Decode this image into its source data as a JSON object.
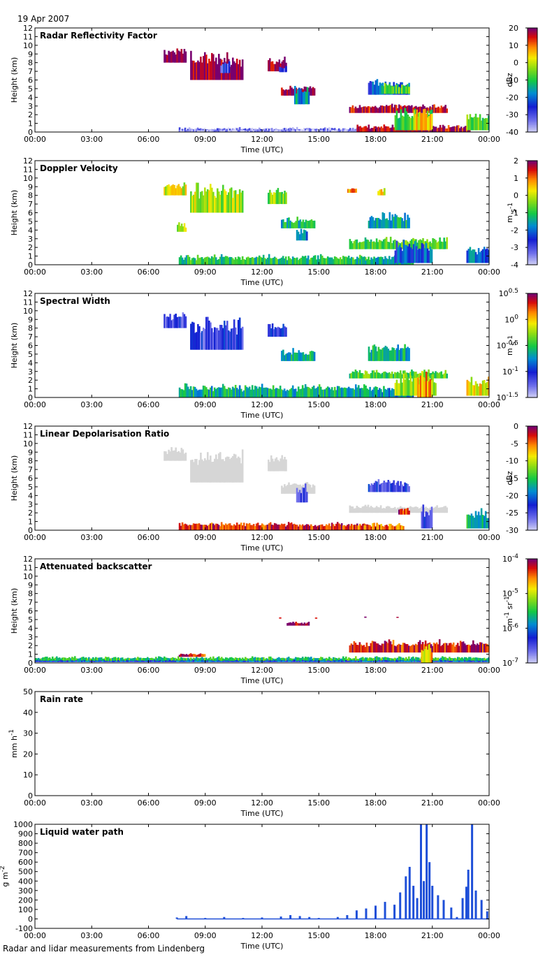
{
  "date_label": "19 Apr 2007",
  "footer_text": "Radar and lidar measurements from Lindenberg",
  "x_axis": {
    "label": "Time (UTC)",
    "ticks": [
      "00:00",
      "03:00",
      "06:00",
      "09:00",
      "12:00",
      "15:00",
      "18:00",
      "21:00",
      "00:00"
    ],
    "range_hours": [
      0,
      24
    ]
  },
  "chart_data": [
    {
      "type": "heatmap",
      "title": "Radar Reflectivity Factor",
      "ylabel": "Height (km)",
      "ylim": [
        0,
        12
      ],
      "yticks": [
        0,
        1,
        2,
        3,
        4,
        5,
        6,
        7,
        8,
        9,
        10,
        11,
        12
      ],
      "colorbar": {
        "unit": "dBz",
        "ticks": [
          "20",
          "10",
          "0",
          "-10",
          "-20",
          "-30",
          "-40"
        ],
        "scheme": "standard"
      },
      "features": [
        {
          "t0": 7.6,
          "t1": 17.5,
          "h0": 0.0,
          "h1": 0.6,
          "v": 0.1
        },
        {
          "t0": 7.6,
          "t1": 20.0,
          "h0": 0.0,
          "h1": 0.3,
          "v": 0.05
        },
        {
          "t0": 17.0,
          "t1": 23.0,
          "h0": 0.0,
          "h1": 0.9,
          "v": 0.95
        },
        {
          "t0": 6.8,
          "t1": 8.0,
          "h0": 8.0,
          "h1": 9.8,
          "v": 1.0
        },
        {
          "t0": 8.2,
          "t1": 11.0,
          "h0": 6.0,
          "h1": 9.5,
          "v": 1.0
        },
        {
          "t0": 9.8,
          "t1": 10.3,
          "h0": 6.8,
          "h1": 8.5,
          "v": 0.2
        },
        {
          "t0": 12.3,
          "t1": 13.3,
          "h0": 7.0,
          "h1": 9.0,
          "v": 1.0
        },
        {
          "t0": 12.9,
          "t1": 13.3,
          "h0": 6.9,
          "h1": 7.7,
          "v": 0.2
        },
        {
          "t0": 13.0,
          "t1": 14.8,
          "h0": 4.2,
          "h1": 5.4,
          "v": 1.0
        },
        {
          "t0": 13.7,
          "t1": 14.5,
          "h0": 3.2,
          "h1": 5.8,
          "v": 0.4
        },
        {
          "t0": 17.6,
          "t1": 19.8,
          "h0": 4.3,
          "h1": 6.2,
          "v": 0.3
        },
        {
          "t0": 18.3,
          "t1": 19.8,
          "h0": 4.4,
          "h1": 5.9,
          "v": 0.55
        },
        {
          "t0": 16.6,
          "t1": 21.8,
          "h0": 2.2,
          "h1": 3.3,
          "v": 0.95
        },
        {
          "t0": 19.0,
          "t1": 21.0,
          "h0": 0.2,
          "h1": 3.2,
          "v": 0.55
        },
        {
          "t0": 20.0,
          "t1": 21.0,
          "h0": 0.2,
          "h1": 3.4,
          "v": 0.75
        },
        {
          "t0": 22.8,
          "t1": 24.0,
          "h0": 0.2,
          "h1": 2.6,
          "v": 0.55
        }
      ]
    },
    {
      "type": "heatmap",
      "title": "Doppler Velocity",
      "ylabel": "Height (km)",
      "ylim": [
        0,
        12
      ],
      "yticks": [
        0,
        1,
        2,
        3,
        4,
        5,
        6,
        7,
        8,
        9,
        10,
        11,
        12
      ],
      "colorbar": {
        "unit": "m s-1",
        "ticks": [
          "2",
          "1",
          "0",
          "-1",
          "-2",
          "-3",
          "-4"
        ],
        "scheme": "standard"
      },
      "features": [
        {
          "t0": 7.6,
          "t1": 17.5,
          "h0": 0.0,
          "h1": 1.3,
          "v": 0.5
        },
        {
          "t0": 17.0,
          "t1": 20.0,
          "h0": 0.0,
          "h1": 1.2,
          "v": 0.45
        },
        {
          "t0": 6.8,
          "t1": 8.0,
          "h0": 8.0,
          "h1": 9.8,
          "v": 0.68
        },
        {
          "t0": 8.2,
          "t1": 11.0,
          "h0": 6.0,
          "h1": 9.7,
          "v": 0.65
        },
        {
          "t0": 7.5,
          "t1": 8.0,
          "h0": 3.8,
          "h1": 5.0,
          "v": 0.62
        },
        {
          "t0": 12.3,
          "t1": 13.3,
          "h0": 7.0,
          "h1": 9.0,
          "v": 0.6
        },
        {
          "t0": 13.0,
          "t1": 14.8,
          "h0": 4.2,
          "h1": 5.6,
          "v": 0.45
        },
        {
          "t0": 13.8,
          "t1": 14.4,
          "h0": 2.8,
          "h1": 4.3,
          "v": 0.35
        },
        {
          "t0": 17.6,
          "t1": 19.8,
          "h0": 4.2,
          "h1": 6.2,
          "v": 0.45
        },
        {
          "t0": 16.6,
          "t1": 21.8,
          "h0": 1.8,
          "h1": 3.3,
          "v": 0.55
        },
        {
          "t0": 19.0,
          "t1": 21.0,
          "h0": 0.2,
          "h1": 3.2,
          "v": 0.3
        },
        {
          "t0": 22.8,
          "t1": 24.0,
          "h0": 0.2,
          "h1": 2.6,
          "v": 0.35
        },
        {
          "t0": 16.5,
          "t1": 17.0,
          "h0": 8.3,
          "h1": 9.0,
          "v": 0.8
        },
        {
          "t0": 18.1,
          "t1": 18.5,
          "h0": 8.0,
          "h1": 9.0,
          "v": 0.7
        }
      ]
    },
    {
      "type": "heatmap",
      "title": "Spectral Width",
      "ylabel": "Height (km)",
      "ylim": [
        0,
        12
      ],
      "yticks": [
        0,
        1,
        2,
        3,
        4,
        5,
        6,
        7,
        8,
        9,
        10,
        11,
        12
      ],
      "colorbar": {
        "unit": "m s-1",
        "ticks": [
          "10^0.5",
          "10^0",
          "10^-0.5",
          "10^-1",
          "10^-1.5"
        ],
        "scheme": "standard"
      },
      "features": [
        {
          "t0": 7.6,
          "t1": 17.5,
          "h0": 0.0,
          "h1": 1.7,
          "v": 0.45
        },
        {
          "t0": 17.0,
          "t1": 20.0,
          "h0": 0.0,
          "h1": 1.5,
          "v": 0.4
        },
        {
          "t0": 6.8,
          "t1": 8.0,
          "h0": 8.0,
          "h1": 10.0,
          "v": 0.2
        },
        {
          "t0": 8.2,
          "t1": 11.0,
          "h0": 5.5,
          "h1": 9.8,
          "v": 0.2
        },
        {
          "t0": 12.3,
          "t1": 13.3,
          "h0": 7.0,
          "h1": 9.0,
          "v": 0.2
        },
        {
          "t0": 13.0,
          "t1": 14.8,
          "h0": 4.2,
          "h1": 5.8,
          "v": 0.45
        },
        {
          "t0": 17.6,
          "t1": 19.8,
          "h0": 4.2,
          "h1": 6.5,
          "v": 0.45
        },
        {
          "t0": 16.6,
          "t1": 21.8,
          "h0": 2.2,
          "h1": 3.3,
          "v": 0.55
        },
        {
          "t0": 19.0,
          "t1": 21.2,
          "h0": 0.2,
          "h1": 3.3,
          "v": 0.65
        },
        {
          "t0": 20.2,
          "t1": 21.0,
          "h0": 0.0,
          "h1": 3.2,
          "v": 0.78
        },
        {
          "t0": 22.8,
          "t1": 24.0,
          "h0": 0.2,
          "h1": 2.6,
          "v": 0.72
        }
      ]
    },
    {
      "type": "heatmap",
      "title": "Linear Depolarisation Ratio",
      "ylabel": "Height (km)",
      "ylim": [
        0,
        12
      ],
      "yticks": [
        0,
        1,
        2,
        3,
        4,
        5,
        6,
        7,
        8,
        9,
        10,
        11,
        12
      ],
      "colorbar": {
        "unit": "dBz",
        "ticks": [
          "0",
          "-5",
          "-10",
          "-15",
          "-20",
          "-25",
          "-30"
        ],
        "scheme": "standard"
      },
      "features": [
        {
          "t0": 7.6,
          "t1": 17.5,
          "h0": 0.0,
          "h1": 1.0,
          "v": 0.9
        },
        {
          "t0": 17.0,
          "t1": 19.5,
          "h0": 0.0,
          "h1": 0.9,
          "v": 0.85
        },
        {
          "t0": 6.8,
          "t1": 8.0,
          "h0": 8.0,
          "h1": 9.8,
          "v": 0.02
        },
        {
          "t0": 8.2,
          "t1": 11.0,
          "h0": 5.5,
          "h1": 9.8,
          "v": 0.02
        },
        {
          "t0": 12.3,
          "t1": 13.3,
          "h0": 6.8,
          "h1": 9.0,
          "v": 0.02
        },
        {
          "t0": 13.0,
          "t1": 14.8,
          "h0": 4.2,
          "h1": 5.8,
          "v": 0.02
        },
        {
          "t0": 13.8,
          "t1": 14.4,
          "h0": 3.2,
          "h1": 5.4,
          "v": 0.2
        },
        {
          "t0": 17.6,
          "t1": 19.8,
          "h0": 4.4,
          "h1": 6.0,
          "v": 0.2
        },
        {
          "t0": 16.6,
          "t1": 21.8,
          "h0": 2.0,
          "h1": 3.0,
          "v": 0.02
        },
        {
          "t0": 20.4,
          "t1": 21.0,
          "h0": 0.2,
          "h1": 3.0,
          "v": 0.2
        },
        {
          "t0": 19.2,
          "t1": 19.8,
          "h0": 1.8,
          "h1": 2.6,
          "v": 0.92
        },
        {
          "t0": 22.8,
          "t1": 24.0,
          "h0": 0.2,
          "h1": 2.6,
          "v": 0.45
        }
      ]
    },
    {
      "type": "heatmap",
      "title": "Attenuated backscatter",
      "ylabel": "Height (km)",
      "ylim": [
        0,
        12
      ],
      "yticks": [
        0,
        1,
        2,
        3,
        4,
        5,
        6,
        7,
        8,
        9,
        10,
        11,
        12
      ],
      "colorbar": {
        "unit": "m-1 sr-1",
        "ticks": [
          "10^-4",
          "10^-5",
          "10^-6",
          "10^-7"
        ],
        "scheme": "standard"
      },
      "features": [
        {
          "t0": 0.0,
          "t1": 24.0,
          "h0": 0.2,
          "h1": 0.8,
          "v": 0.5
        },
        {
          "t0": 0.0,
          "t1": 24.0,
          "h0": 0.1,
          "h1": 0.35,
          "v": 0.3
        },
        {
          "t0": 7.6,
          "t1": 9.0,
          "h0": 0.7,
          "h1": 1.2,
          "v": 0.9
        },
        {
          "t0": 16.6,
          "t1": 24.0,
          "h0": 1.2,
          "h1": 2.8,
          "v": 0.92
        },
        {
          "t0": 20.4,
          "t1": 21.0,
          "h0": 0.0,
          "h1": 2.6,
          "v": 0.75
        },
        {
          "t0": 13.3,
          "t1": 14.5,
          "h0": 4.3,
          "h1": 4.8,
          "v": 0.98
        },
        {
          "t0": 12.9,
          "t1": 13.0,
          "h0": 5.1,
          "h1": 5.3,
          "v": 0.95
        },
        {
          "t0": 14.8,
          "t1": 14.9,
          "h0": 5.1,
          "h1": 5.3,
          "v": 0.95
        },
        {
          "t0": 17.4,
          "t1": 17.5,
          "h0": 5.2,
          "h1": 5.4,
          "v": 0.95
        },
        {
          "t0": 19.1,
          "t1": 19.2,
          "h0": 5.2,
          "h1": 5.4,
          "v": 0.95
        }
      ]
    },
    {
      "type": "line",
      "title": "Rain rate",
      "ylabel": "mm h-1",
      "ylim": [
        0,
        50
      ],
      "yticks": [
        0,
        10,
        20,
        30,
        40,
        50
      ],
      "x": [],
      "values": []
    },
    {
      "type": "bar",
      "title": "Liquid water path",
      "ylabel": "g m-2",
      "ylim": [
        -100,
        1000
      ],
      "yticks": [
        -100,
        0,
        100,
        200,
        300,
        400,
        500,
        600,
        700,
        800,
        900,
        1000
      ],
      "x_hours": [
        7.5,
        8.0,
        9.0,
        10.0,
        11.0,
        12.0,
        13.0,
        13.5,
        14.0,
        14.5,
        15.0,
        16.0,
        16.5,
        17.0,
        17.5,
        18.0,
        18.5,
        19.0,
        19.3,
        19.6,
        19.8,
        20.0,
        20.2,
        20.4,
        20.55,
        20.7,
        20.85,
        21.0,
        21.3,
        21.6,
        22.0,
        22.3,
        22.6,
        22.8,
        22.9,
        23.1,
        23.3,
        23.6,
        23.9
      ],
      "values": [
        15,
        30,
        10,
        20,
        10,
        15,
        25,
        40,
        30,
        20,
        10,
        20,
        40,
        90,
        110,
        140,
        180,
        150,
        280,
        450,
        550,
        350,
        220,
        1000,
        400,
        1000,
        600,
        350,
        250,
        200,
        120,
        20,
        220,
        340,
        520,
        1000,
        300,
        200,
        80
      ]
    }
  ]
}
